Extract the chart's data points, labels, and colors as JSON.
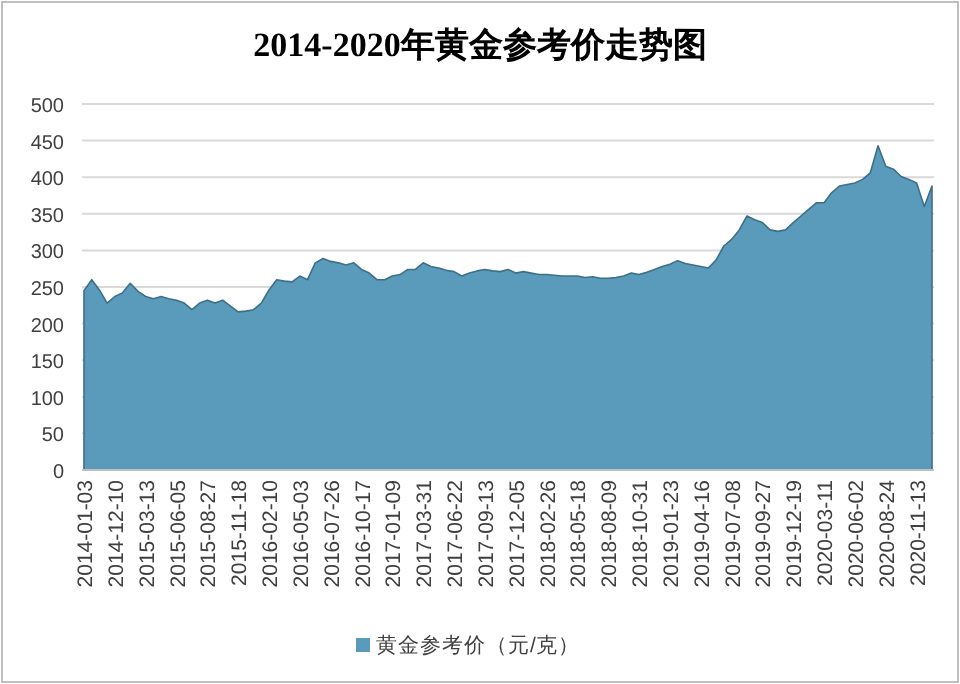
{
  "chart_data": {
    "type": "area",
    "title": "2014-2020年黄金参考价走势图",
    "categories": [
      "2014-01-03",
      null,
      null,
      null,
      "2014-12-10",
      null,
      null,
      null,
      "2015-03-13",
      null,
      null,
      null,
      "2015-06-05",
      null,
      null,
      null,
      "2015-08-27",
      null,
      null,
      null,
      "2015-11-18",
      null,
      null,
      null,
      "2016-02-10",
      null,
      null,
      null,
      "2016-05-03",
      null,
      null,
      null,
      "2016-07-26",
      null,
      null,
      null,
      "2016-10-17",
      null,
      null,
      null,
      "2017-01-09",
      null,
      null,
      null,
      "2017-03-31",
      null,
      null,
      null,
      "2017-06-22",
      null,
      null,
      null,
      "2017-09-13",
      null,
      null,
      null,
      "2017-12-05",
      null,
      null,
      null,
      "2018-02-26",
      null,
      null,
      null,
      "2018-05-18",
      null,
      null,
      null,
      "2018-08-09",
      null,
      null,
      null,
      "2018-10-31",
      null,
      null,
      null,
      "2019-01-23",
      null,
      null,
      null,
      "2019-04-16",
      null,
      null,
      null,
      "2019-07-08",
      null,
      null,
      null,
      "2019-09-27",
      null,
      null,
      null,
      "2019-12-19",
      null,
      null,
      null,
      "2020-03-11",
      null,
      null,
      null,
      "2020-06-02",
      null,
      null,
      null,
      "2020-08-24",
      null,
      null,
      null,
      "2020-11-13",
      null,
      null
    ],
    "series": [
      {
        "name": "黄金参考价（元/克）",
        "color": "#5a9bbb",
        "values": [
          245,
          260,
          246,
          228,
          237,
          242,
          255,
          244,
          237,
          234,
          237,
          234,
          232,
          228,
          219,
          228,
          232,
          228,
          232,
          224,
          216,
          217,
          219,
          228,
          246,
          260,
          258,
          257,
          265,
          260,
          283,
          289,
          285,
          283,
          280,
          283,
          274,
          269,
          260,
          260,
          265,
          267,
          274,
          274,
          283,
          278,
          276,
          273,
          271,
          265,
          269,
          272,
          274,
          272,
          271,
          274,
          269,
          271,
          269,
          267,
          267,
          266,
          265,
          265,
          265,
          263,
          264,
          262,
          262,
          263,
          265,
          269,
          267,
          270,
          274,
          278,
          281,
          286,
          282,
          280,
          278,
          276,
          287,
          306,
          315,
          328,
          347,
          342,
          338,
          328,
          326,
          328,
          338,
          347,
          356,
          365,
          365,
          379,
          388,
          390,
          392,
          397,
          406,
          443,
          415,
          411,
          401,
          397,
          392,
          360,
          388
        ]
      }
    ],
    "ylim": [
      0,
      500
    ],
    "yticks": [
      0,
      50,
      100,
      150,
      200,
      250,
      300,
      350,
      400,
      450,
      500
    ],
    "grid": "y",
    "legend": "bottom"
  }
}
